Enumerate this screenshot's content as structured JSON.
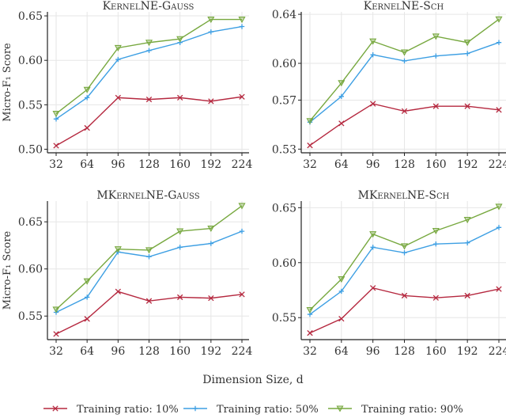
{
  "chart_data": [
    {
      "type": "line",
      "title": "KernelNE-Gauss",
      "ylabel": "Micro-F₁ Score",
      "x": [
        32,
        64,
        96,
        128,
        160,
        192,
        224
      ],
      "yticks": [
        "0.50",
        "0.55",
        "0.60",
        "0.65"
      ],
      "ylim": [
        0.496,
        0.6545
      ],
      "series": [
        {
          "name": "Training ratio: 10%",
          "values": [
            0.504,
            0.524,
            0.558,
            0.556,
            0.558,
            0.554,
            0.559
          ]
        },
        {
          "name": "Training ratio: 50%",
          "values": [
            0.534,
            0.558,
            0.601,
            0.611,
            0.62,
            0.632,
            0.638
          ]
        },
        {
          "name": "Training ratio: 90%",
          "values": [
            0.54,
            0.567,
            0.614,
            0.62,
            0.624,
            0.646,
            0.646
          ]
        }
      ]
    },
    {
      "type": "line",
      "title": "KernelNE-Sch",
      "ylabel": "",
      "x": [
        32,
        64,
        96,
        128,
        160,
        192,
        224
      ],
      "yticks": [
        "0.53",
        "0.57",
        "0.60",
        "0.64"
      ],
      "ylim": [
        0.527,
        0.642
      ],
      "series": [
        {
          "name": "Training ratio: 10%",
          "values": [
            0.533,
            0.551,
            0.567,
            0.561,
            0.565,
            0.565,
            0.562
          ]
        },
        {
          "name": "Training ratio: 50%",
          "values": [
            0.552,
            0.573,
            0.607,
            0.602,
            0.606,
            0.608,
            0.617
          ]
        },
        {
          "name": "Training ratio: 90%",
          "values": [
            0.553,
            0.584,
            0.618,
            0.609,
            0.622,
            0.617,
            0.636
          ]
        }
      ]
    },
    {
      "type": "line",
      "title": "MKernelNE-Gauss",
      "ylabel": "Micro-F₁ Score",
      "x": [
        32,
        64,
        96,
        128,
        160,
        192,
        224
      ],
      "yticks": [
        "0.55",
        "0.60",
        "0.65"
      ],
      "ylim": [
        0.525,
        0.672
      ],
      "series": [
        {
          "name": "Training ratio: 10%",
          "values": [
            0.531,
            0.547,
            0.576,
            0.566,
            0.57,
            0.569,
            0.573
          ]
        },
        {
          "name": "Training ratio: 50%",
          "values": [
            0.554,
            0.57,
            0.618,
            0.613,
            0.623,
            0.627,
            0.64
          ]
        },
        {
          "name": "Training ratio: 90%",
          "values": [
            0.557,
            0.587,
            0.621,
            0.62,
            0.64,
            0.643,
            0.667
          ]
        }
      ]
    },
    {
      "type": "line",
      "title": "MKernelNE-Sch",
      "ylabel": "",
      "x": [
        32,
        64,
        96,
        128,
        160,
        192,
        224
      ],
      "yticks": [
        "0.55",
        "0.60",
        "0.65"
      ],
      "ylim": [
        0.53,
        0.656
      ],
      "series": [
        {
          "name": "Training ratio: 10%",
          "values": [
            0.536,
            0.549,
            0.577,
            0.57,
            0.568,
            0.57,
            0.576
          ]
        },
        {
          "name": "Training ratio: 50%",
          "values": [
            0.553,
            0.574,
            0.614,
            0.609,
            0.617,
            0.618,
            0.632
          ]
        },
        {
          "name": "Training ratio: 90%",
          "values": [
            0.557,
            0.585,
            0.626,
            0.615,
            0.629,
            0.639,
            0.651
          ]
        }
      ]
    }
  ],
  "xlabel": "Dimension Size, d",
  "grid": true,
  "legend": {
    "placement": "bottom",
    "entries": [
      "Training ratio: 10%",
      "Training ratio: 50%",
      "Training ratio: 90%"
    ]
  },
  "series_style": [
    {
      "color": "#b5283f",
      "marker": "x"
    },
    {
      "color": "#3d9fe3",
      "marker": "plus"
    },
    {
      "color": "#77a83f",
      "marker": "triangle-down"
    }
  ]
}
